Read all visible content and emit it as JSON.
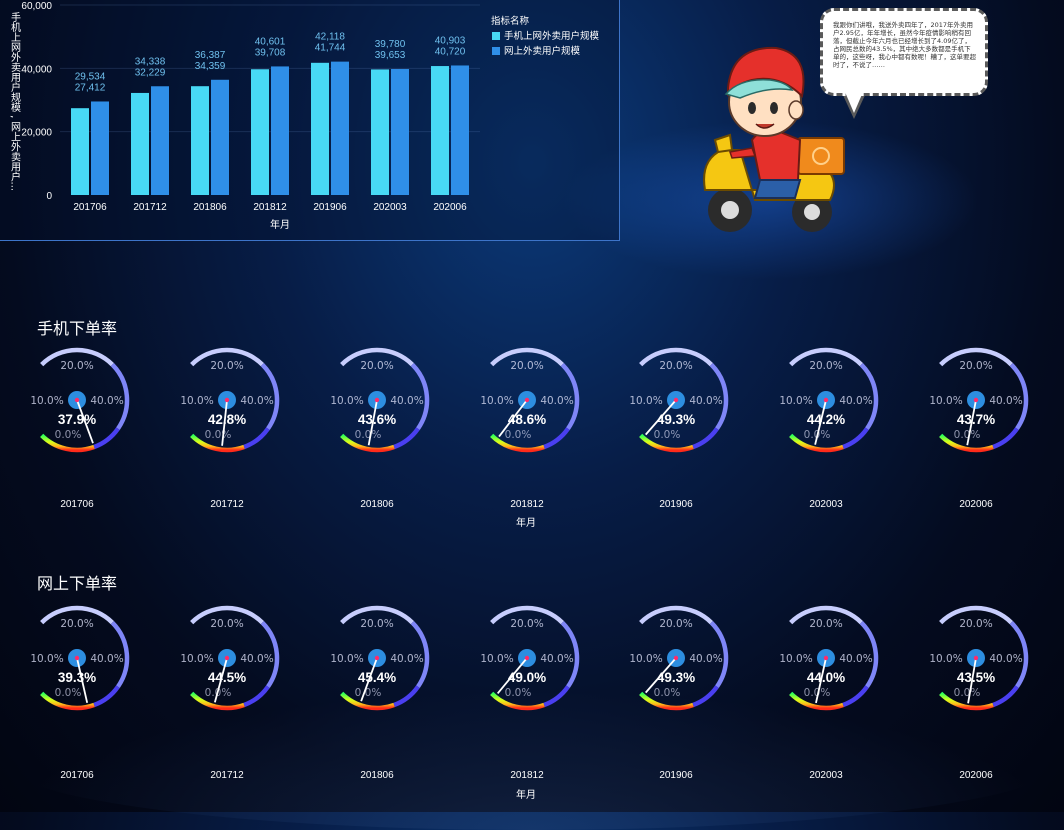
{
  "colors": {
    "series1": "#48d9f5",
    "series2": "#2f8fe8",
    "gauge_base": "#c7cdfd",
    "gauge_blue": "#4a3ff0",
    "hub": "#2d8ee0",
    "needle_dot": "#ff2b6b"
  },
  "speech": {
    "text": "我跟你们讲哦，我送外卖四年了，2017年外卖用户2.95亿，年年增长，虽然今年疫情影响稍有回落，但截止今年六月也已经增长到了4.09亿了，占网民总数的43.5%，其中绝大多数都是手机下单的，这些呀，我心中都有数呢！糟了，这单要超时了，不说了……"
  },
  "sections": {
    "mobile_title": "手机下单率",
    "online_title": "网上下单率"
  },
  "chart_data": [
    {
      "type": "bar",
      "categories": [
        "201706",
        "201712",
        "201806",
        "201812",
        "201906",
        "202003",
        "202006"
      ],
      "series": [
        {
          "name": "手机上网外卖用户规模",
          "values": [
            27412,
            32229,
            34359,
            39708,
            41744,
            39653,
            40720
          ]
        },
        {
          "name": "网上外卖用户规模",
          "values": [
            29534,
            34338,
            36387,
            40601,
            42118,
            39780,
            40903
          ]
        }
      ],
      "data_labels": {
        "top": [
          "29,534",
          "34,338",
          "36,387",
          "40,601",
          "42,118",
          "39,780",
          "40,903"
        ],
        "bottom": [
          "27,412",
          "32,229",
          "34,359",
          "39,708",
          "41,744",
          "39,653",
          "40,720"
        ]
      },
      "legend_title": "指标名称",
      "legend_position": "top-right",
      "xlabel": "年月",
      "ylabel": "手机上网外卖用户规模 , 网上外卖用户...",
      "ylim": [
        0,
        60000
      ],
      "yticks": [
        "0",
        "20,000",
        "40,000",
        "60,000"
      ],
      "grid": true
    },
    {
      "type": "gauge",
      "title": "手机下单率",
      "categories": [
        "201706",
        "201712",
        "201806",
        "201812",
        "201906",
        "202003",
        "202006"
      ],
      "values": [
        37.9,
        42.8,
        43.6,
        48.6,
        49.3,
        44.2,
        43.7
      ],
      "value_labels": [
        "37.9%",
        "42.8%",
        "43.6%",
        "48.6%",
        "49.3%",
        "44.2%",
        "43.7%"
      ],
      "scale_labels": [
        "0.0%",
        "10.0%",
        "20.0%",
        "40.0%"
      ],
      "range": [
        0,
        50
      ],
      "xlabel": "年月"
    },
    {
      "type": "gauge",
      "title": "网上下单率",
      "categories": [
        "201706",
        "201712",
        "201806",
        "201812",
        "201906",
        "202003",
        "202006"
      ],
      "values": [
        39.3,
        44.5,
        45.4,
        49.0,
        49.3,
        44.0,
        43.5
      ],
      "value_labels": [
        "39.3%",
        "44.5%",
        "45.4%",
        "49.0%",
        "49.3%",
        "44.0%",
        "43.5%"
      ],
      "scale_labels": [
        "0.0%",
        "10.0%",
        "20.0%",
        "40.0%"
      ],
      "range": [
        0,
        50
      ],
      "xlabel": "年月"
    }
  ]
}
